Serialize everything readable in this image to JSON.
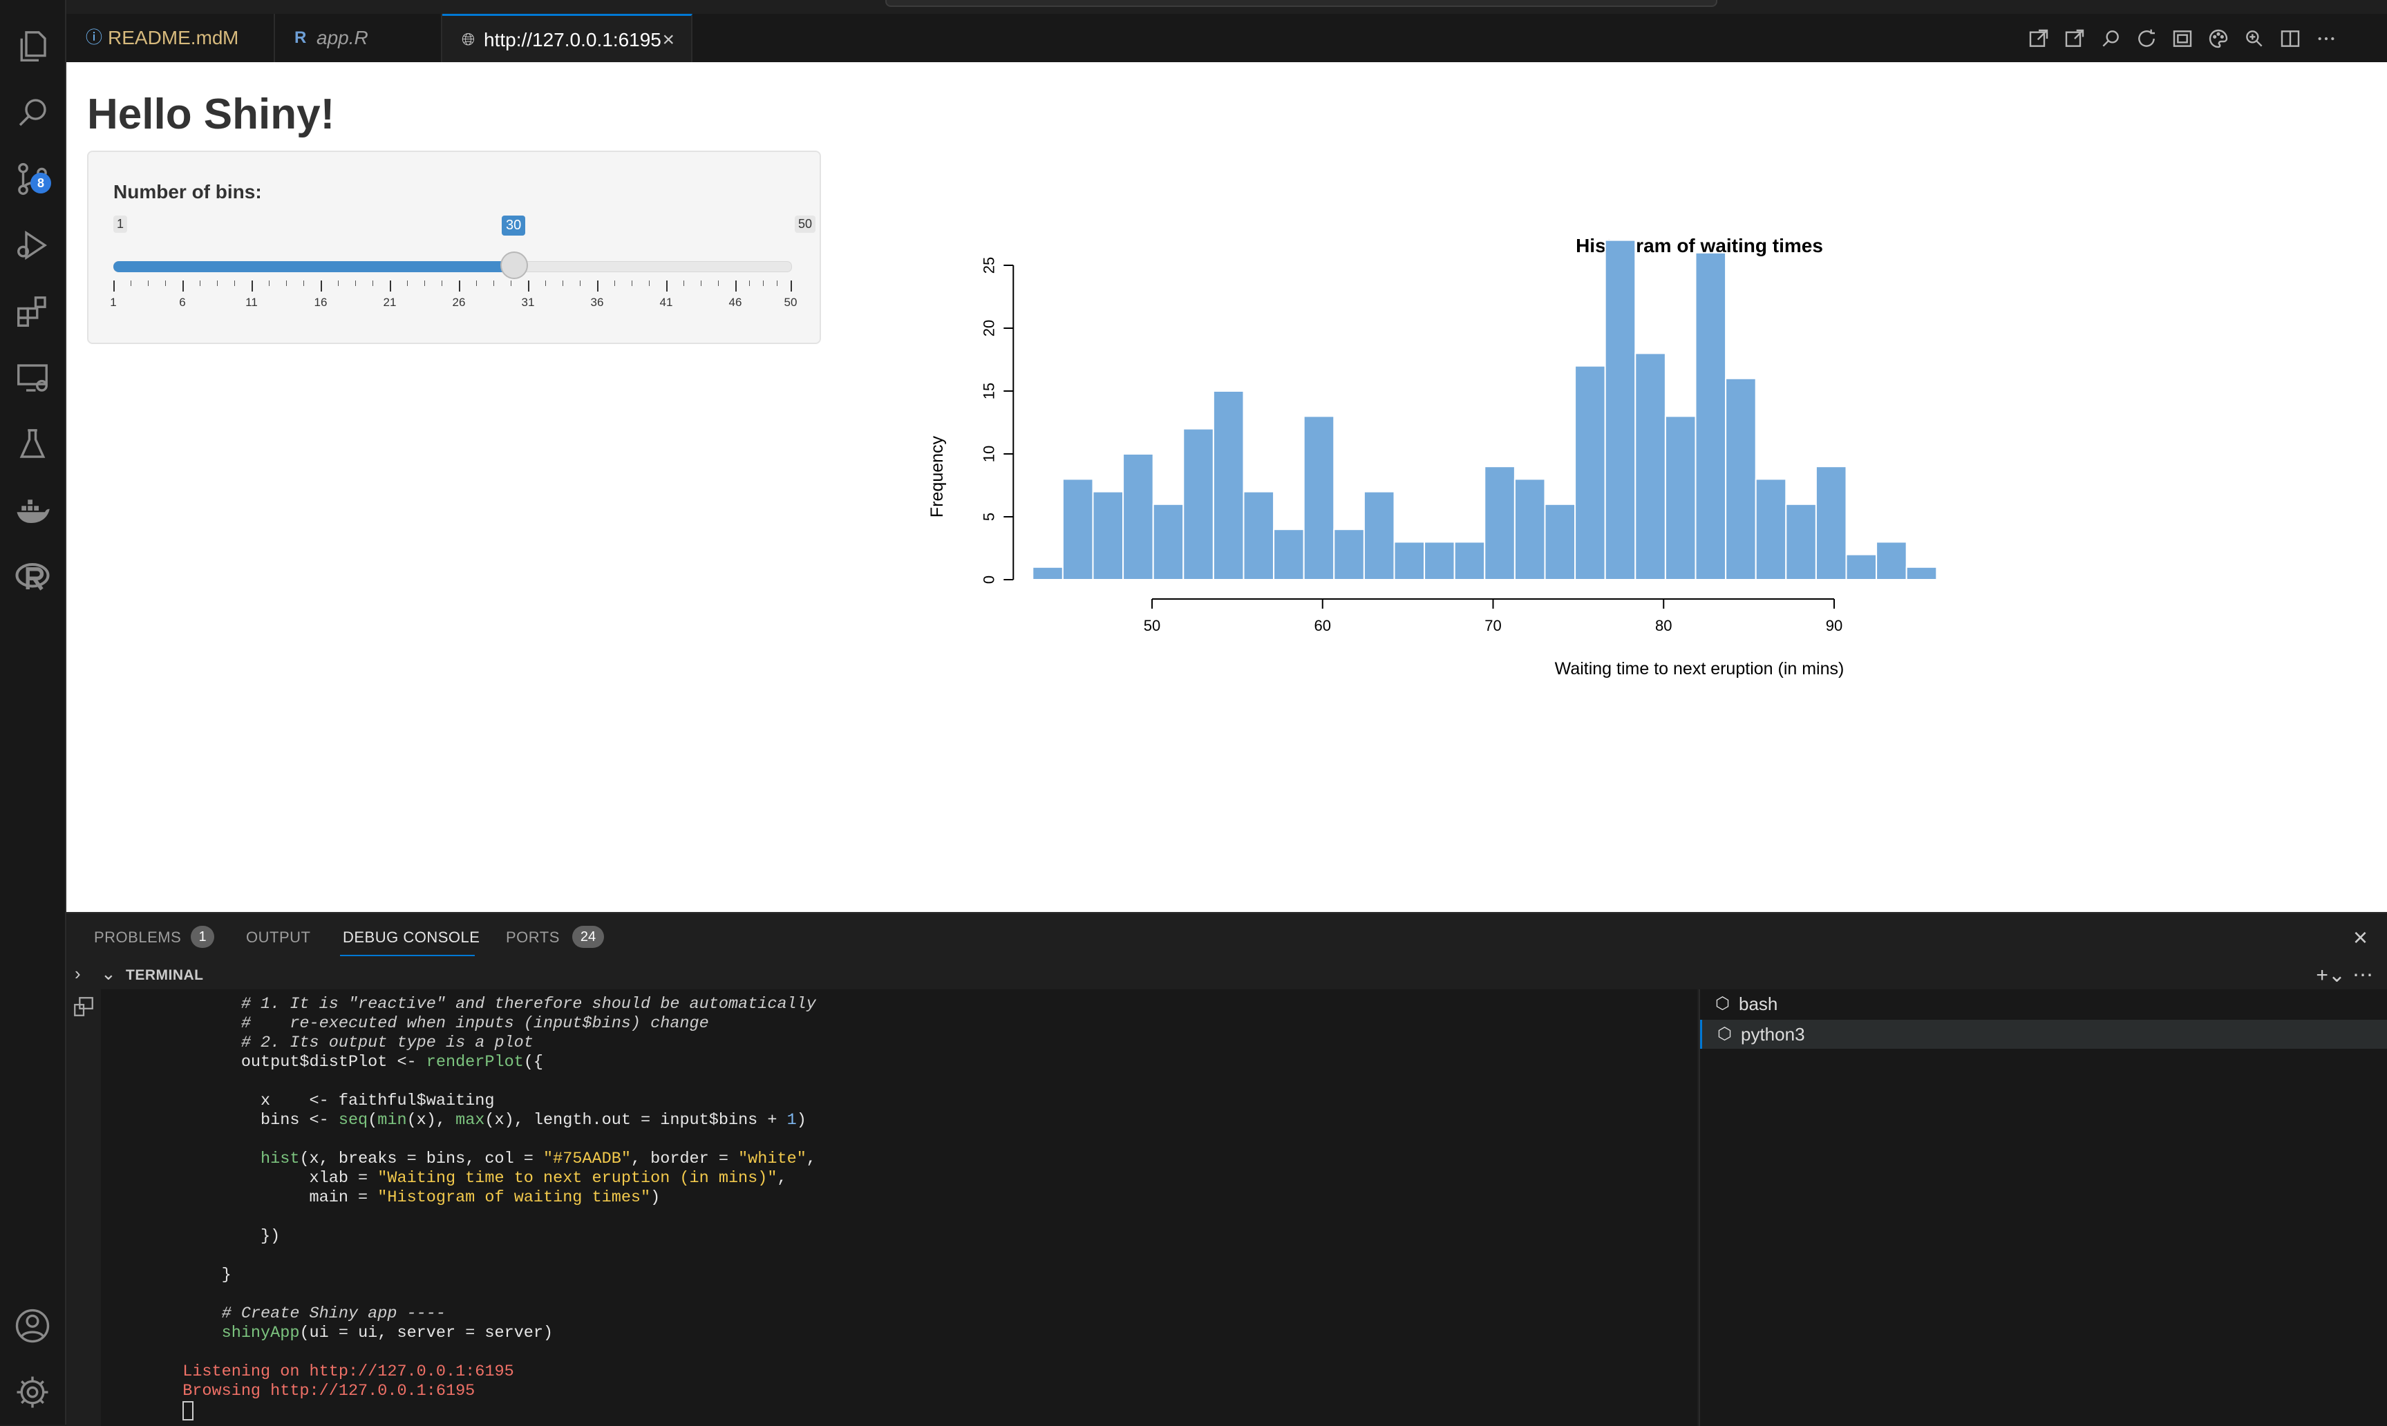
{
  "window": {
    "tabs": [
      {
        "label": "README.md",
        "status": "M",
        "icon": "info-icon",
        "color": "#d7ba7d"
      },
      {
        "label": "app.R",
        "icon": "r-file-icon"
      },
      {
        "label": "http://127.0.0.1:6195",
        "icon": "globe-icon",
        "active": true
      }
    ],
    "activity_bar": {
      "items": [
        "explorer-icon",
        "search-icon",
        "source-control-icon",
        "run-debug-icon",
        "extensions-icon",
        "remote-explorer-icon",
        "testing-icon",
        "docker-icon",
        "r-icon"
      ],
      "source_control_badge": "8",
      "bottom": [
        "account-icon",
        "settings-gear-icon"
      ]
    },
    "toolbar_icons": [
      "open-external-icon",
      "open-in-browser-icon",
      "find-icon",
      "reload-icon",
      "screencast-icon",
      "theme-icon",
      "zoom-icon",
      "split-editor-icon",
      "more-actions-icon"
    ]
  },
  "app": {
    "title": "Hello Shiny!",
    "slider": {
      "label": "Number of bins:",
      "min": 1,
      "max": 50,
      "value": 30,
      "min_label": "1",
      "max_label": "50",
      "value_label": "30",
      "grid_labels": [
        "1",
        "6",
        "11",
        "16",
        "21",
        "26",
        "31",
        "36",
        "41",
        "46",
        "50"
      ],
      "accent": "#428bca"
    }
  },
  "chart_data": {
    "type": "bar",
    "title": "Histogram of waiting times",
    "xlabel": "Waiting time to next eruption (in mins)",
    "ylabel": "Frequency",
    "bin_start": 43.0,
    "bin_width": 1.767,
    "values": [
      1,
      8,
      7,
      10,
      6,
      12,
      15,
      7,
      4,
      13,
      4,
      7,
      3,
      3,
      3,
      9,
      8,
      6,
      17,
      27,
      18,
      13,
      26,
      16,
      8,
      6,
      9,
      2,
      3,
      1
    ],
    "xticks": [
      50,
      60,
      70,
      80,
      90
    ],
    "yticks": [
      0,
      5,
      10,
      15,
      20,
      25
    ],
    "xlim": [
      43.0,
      96.0
    ],
    "ylim": [
      0,
      27
    ],
    "bar_color": "#75AADB",
    "border_color": "white"
  },
  "panel": {
    "tabs": [
      {
        "label": "PROBLEMS",
        "badge": "1"
      },
      {
        "label": "OUTPUT"
      },
      {
        "label": "DEBUG CONSOLE",
        "active": true
      },
      {
        "label": "PORTS",
        "badge": "24"
      }
    ],
    "terminal_title": "TERMINAL",
    "terminals": [
      {
        "label": "bash",
        "icon": "terminal-cube-icon"
      },
      {
        "label": "python3",
        "icon": "terminal-cube-icon",
        "selected": true
      }
    ],
    "code": {
      "l1": "        # 1. It is \"reactive\" and therefore should be automatically",
      "l2": "        #    re-executed when inputs (input$bins) change",
      "l3": "        # 2. Its output type is a plot",
      "l4a": "        output$distPlot <- ",
      "l4fn": "renderPlot",
      "l4b": "({",
      "l5": "          x    <- faithful$waiting",
      "l6a": "          bins <- ",
      "l6fn1": "seq",
      "l6b": "(",
      "l6fn2": "min",
      "l6c": "(x), ",
      "l6fn3": "max",
      "l6d": "(x), length.out = input$bins + ",
      "l6num": "1",
      "l6e": ")",
      "l7fn": "hist",
      "l7a": "(x, breaks = bins, col = ",
      "l7s1": "\"#75AADB\"",
      "l7b": ", border = ",
      "l7s2": "\"white\"",
      "l7c": ",",
      "l8a": "               xlab = ",
      "l8s": "\"Waiting time to next eruption (in mins)\"",
      "l8b": ",",
      "l9a": "               main = ",
      "l9s": "\"Histogram of waiting times\"",
      "l9b": ")",
      "l10": "          })",
      "l11": "      }",
      "l12": "      # Create Shiny app ----",
      "l13fn": "shinyApp",
      "l13b": "(ui = ui, server = server)",
      "l14": "  Listening on http://127.0.0.1:6195",
      "l15": "  Browsing http://127.0.0.1:6195"
    }
  }
}
